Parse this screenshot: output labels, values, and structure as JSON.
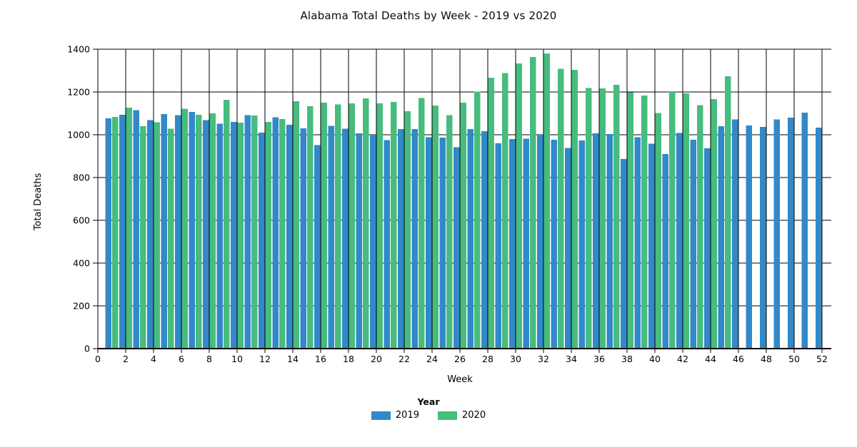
{
  "chart": {
    "title": "Alabama Total Deaths by Week - 2019 vs 2020"
  },
  "chart_data": {
    "type": "bar",
    "title": "Alabama Total Deaths by Week - 2019 vs 2020",
    "xlabel": "Week",
    "ylabel": "Total Deaths",
    "legend_title": "Year",
    "legend_position": "bottom",
    "grid": true,
    "xlim": [
      0,
      52.7
    ],
    "ylim": [
      0,
      1400
    ],
    "x_ticks": [
      0,
      2,
      4,
      6,
      8,
      10,
      12,
      14,
      16,
      18,
      20,
      22,
      24,
      26,
      28,
      30,
      32,
      34,
      36,
      38,
      40,
      42,
      44,
      46,
      48,
      50,
      52
    ],
    "y_ticks": [
      0,
      200,
      400,
      600,
      800,
      1000,
      1200,
      1400
    ],
    "x": [
      1,
      2,
      3,
      4,
      5,
      6,
      7,
      8,
      9,
      10,
      11,
      12,
      13,
      14,
      15,
      16,
      17,
      18,
      19,
      20,
      21,
      22,
      23,
      24,
      25,
      26,
      27,
      28,
      29,
      30,
      31,
      32,
      33,
      34,
      35,
      36,
      37,
      38,
      39,
      40,
      41,
      42,
      43,
      44,
      45,
      46,
      47,
      48,
      49,
      50,
      51,
      52
    ],
    "series": [
      {
        "name": "2019",
        "color": "#3189c9",
        "values": [
          1077,
          1093,
          1115,
          1069,
          1097,
          1091,
          1106,
          1069,
          1052,
          1060,
          1091,
          1010,
          1082,
          1046,
          1030,
          952,
          1041,
          1028,
          1007,
          997,
          975,
          1027,
          1027,
          988,
          986,
          941,
          1027,
          1017,
          960,
          980,
          982,
          997,
          977,
          938,
          973,
          1007,
          1004,
          886,
          988,
          958,
          910,
          1008,
          977,
          937,
          1040,
          1071,
          1043,
          1037,
          1072,
          1080,
          1104,
          1034
        ]
      },
      {
        "name": "2020",
        "color": "#47bc7e",
        "values": [
          1083,
          1127,
          1040,
          1058,
          1028,
          1121,
          1093,
          1100,
          1163,
          1057,
          1090,
          1060,
          1073,
          1157,
          1133,
          1150,
          1141,
          1146,
          1170,
          1147,
          1153,
          1110,
          1172,
          1136,
          1091,
          1150,
          1202,
          1267,
          1288,
          1333,
          1363,
          1380,
          1308,
          1304,
          1219,
          1216,
          1233,
          1199,
          1183,
          1102,
          1204,
          1193,
          1139,
          1167,
          1274,
          null,
          null,
          null,
          null,
          null,
          null,
          null
        ]
      }
    ]
  }
}
